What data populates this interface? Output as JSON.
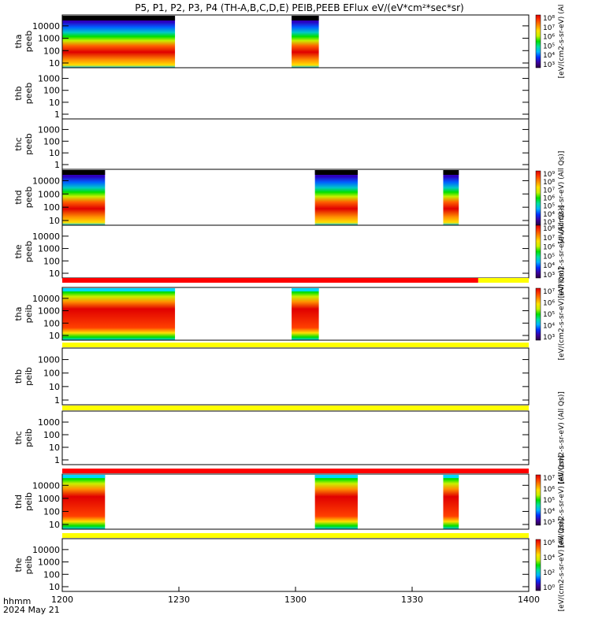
{
  "title": "P5, P1, P2, P3, P4 (TH-A,B,C,D,E) PEIB,PEEB EFlux eV/(eV*cm²*sec*sr)",
  "x_axis": {
    "label": "hhmm",
    "date": "2024 May 21",
    "ticks": [
      "1200",
      "1230",
      "1300",
      "1330",
      "1400"
    ]
  },
  "colors": {
    "spectrum": [
      "#2a0040",
      "#3c00a0",
      "#0030ff",
      "#00b4ff",
      "#00e0a0",
      "#00e000",
      "#c8f000",
      "#ffe000",
      "#ff9000",
      "#ff4000",
      "#e00000"
    ],
    "status_red": "#ff0000",
    "status_yellow": "#ffff00"
  },
  "chart_data": [
    {
      "type": "heatmap",
      "panel": "thb-peeb placeholder"
    }
  ],
  "panels": [
    {
      "id": "tha-peeb",
      "label1": "tha",
      "label2": "peeb",
      "yticks": [
        "10",
        "100",
        "1000",
        "10000"
      ],
      "data_intervals": [
        [
          "12:00",
          "12:29"
        ],
        [
          "12:59",
          "13:06"
        ]
      ],
      "colorbar": {
        "ticks": [
          "10³",
          "10⁴",
          "10⁵",
          "10⁶",
          "10⁷",
          "10⁸"
        ],
        "title": "[eV/(cm2-s-sr-eV) (Al"
      }
    },
    {
      "id": "thb-peeb",
      "label1": "thb",
      "label2": "peeb",
      "yticks": [
        "1",
        "10",
        "100",
        "1000"
      ],
      "data_intervals": []
    },
    {
      "id": "thc-peeb",
      "label1": "thc",
      "label2": "peeb",
      "yticks": [
        "1",
        "10",
        "100",
        "1000"
      ],
      "data_intervals": []
    },
    {
      "id": "thd-peeb",
      "label1": "thd",
      "label2": "peeb",
      "yticks": [
        "10",
        "100",
        "1000",
        "10000"
      ],
      "data_intervals": [
        [
          "12:00",
          "12:11"
        ],
        [
          "13:05",
          "13:16"
        ],
        [
          "13:38",
          "13:42"
        ]
      ],
      "colorbar": {
        "ticks": [
          "10³",
          "10⁴",
          "10⁵",
          "10⁶",
          "10⁷",
          "10⁸",
          "10⁹"
        ],
        "title": "[eV/(cm2-s-sr-eV) (All Qs)]"
      }
    },
    {
      "id": "the-peeb",
      "label1": "the",
      "label2": "peeb",
      "yticks": [
        "10",
        "100",
        "1000",
        "10000"
      ],
      "data_intervals": [],
      "colorbar": {
        "ticks": [
          "10³",
          "10⁴",
          "10⁵",
          "10⁶",
          "10⁷",
          "10⁸"
        ],
        "title": "[eV/(cm2-s-sr-eV) (All Qs)]"
      }
    },
    {
      "id": "tha-peib",
      "label1": "tha",
      "label2": "peib",
      "yticks": [
        "10",
        "100",
        "1000",
        "10000"
      ],
      "data_intervals": [
        [
          "12:00",
          "12:29"
        ],
        [
          "12:59",
          "13:06"
        ]
      ],
      "colorbar": {
        "ticks": [
          "10³",
          "10⁴",
          "10⁵",
          "10⁶",
          "10⁷"
        ],
        "title": "[eV/(cm2-s-sr-eV) (All Qs)]"
      }
    },
    {
      "id": "thb-peib",
      "label1": "thb",
      "label2": "peib",
      "yticks": [
        "1",
        "10",
        "100",
        "1000"
      ],
      "data_intervals": []
    },
    {
      "id": "thc-peib",
      "label1": "thc",
      "label2": "peib",
      "yticks": [
        "1",
        "10",
        "100",
        "1000"
      ],
      "data_intervals": [],
      "colorbar": {
        "ticks": [],
        "title": "[eV/(cm2-s-sr-eV) (All Qs)]"
      }
    },
    {
      "id": "thd-peib",
      "label1": "thd",
      "label2": "peib",
      "yticks": [
        "10",
        "100",
        "1000",
        "10000"
      ],
      "data_intervals": [
        [
          "12:00",
          "12:11"
        ],
        [
          "13:05",
          "13:16"
        ],
        [
          "13:38",
          "13:42"
        ]
      ],
      "colorbar": {
        "ticks": [
          "10³",
          "10⁴",
          "10⁵",
          "10⁶",
          "10⁷"
        ],
        "title": "[eV/(cm2-s-sr-eV) (All Qs)]"
      }
    },
    {
      "id": "the-peib",
      "label1": "the",
      "label2": "peib",
      "yticks": [
        "10",
        "100",
        "1000",
        "10000"
      ],
      "data_intervals": [],
      "colorbar": {
        "ticks": [
          "10⁰",
          "10²",
          "10⁴",
          "10⁶"
        ],
        "title": "[eV/(cm2-s-sr-eV) (All Qs)]"
      }
    }
  ],
  "status_bars": [
    {
      "above": "tha-peib",
      "segments": [
        {
          "from": "12:00",
          "to": "13:47",
          "color": "red"
        },
        {
          "from": "13:47",
          "to": "14:00",
          "color": "yellow"
        }
      ]
    },
    {
      "above": "thb-peib",
      "segments": [
        {
          "from": "12:00",
          "to": "14:00",
          "color": "yellow"
        }
      ]
    },
    {
      "above": "thc-peib",
      "segments": [
        {
          "from": "12:00",
          "to": "14:00",
          "color": "yellow"
        }
      ]
    },
    {
      "above": "thd-peib",
      "segments": [
        {
          "from": "12:00",
          "to": "14:00",
          "color": "red"
        }
      ]
    },
    {
      "above": "the-peib",
      "segments": [
        {
          "from": "12:00",
          "to": "14:00",
          "color": "yellow"
        }
      ]
    }
  ]
}
